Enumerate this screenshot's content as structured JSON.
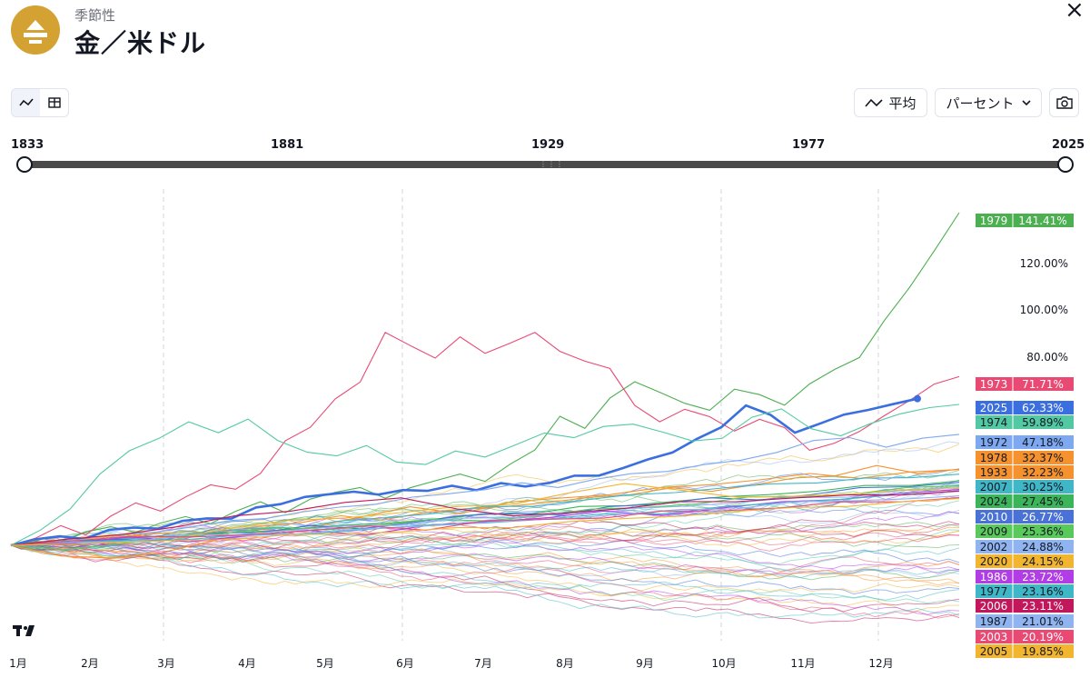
{
  "header": {
    "subtitle": "季節性",
    "title": "金／米ドル",
    "close_label": "×",
    "logo_icon": "gold-bars-icon"
  },
  "toolbar": {
    "chart_view_icon": "line-chart-icon",
    "table_view_icon": "table-icon",
    "average_label": "平均",
    "mode_label": "パーセント",
    "screenshot_icon": "camera-icon",
    "dropdown_icon": "chevron-down-icon"
  },
  "range": {
    "start": "1833",
    "ticks": [
      "1881",
      "1929",
      "1977"
    ],
    "end": "2025"
  },
  "chart_data": {
    "type": "line",
    "x_labels": [
      "1月",
      "2月",
      "3月",
      "4月",
      "5月",
      "6月",
      "7月",
      "8月",
      "9月",
      "10月",
      "11月",
      "12月"
    ],
    "y_ticks": [
      "80.00%",
      "100.00%",
      "120.00%"
    ],
    "ylim": [
      -40,
      150
    ],
    "grid": "vertical dashed",
    "legend": "right",
    "series": [
      {
        "name": "1979",
        "value": "141.41%",
        "color": "#4caf50",
        "values": [
          0,
          2,
          1,
          6,
          8,
          5,
          10,
          12,
          9,
          15,
          18,
          14,
          20,
          22,
          25,
          20,
          24,
          28,
          30,
          27,
          35,
          40,
          55,
          50,
          62,
          70,
          65,
          60,
          58,
          66,
          64,
          60,
          68,
          75,
          80,
          95,
          110,
          125,
          141.41
        ]
      },
      {
        "name": "1973",
        "value": "71.71%",
        "color": "#e84a74",
        "values": [
          0,
          3,
          8,
          5,
          12,
          18,
          15,
          20,
          26,
          24,
          30,
          45,
          50,
          62,
          70,
          90,
          85,
          80,
          88,
          82,
          86,
          90,
          83,
          78,
          75,
          60,
          52,
          58,
          55,
          48,
          54,
          50,
          40,
          44,
          48,
          55,
          62,
          68,
          71.71
        ]
      },
      {
        "name": "2025",
        "value": "62.33%",
        "color": "#3b6fe0",
        "values": [
          0,
          2,
          4,
          3,
          6,
          8,
          7,
          10,
          12,
          11,
          16,
          18,
          20,
          22,
          23,
          21,
          24,
          23,
          25,
          24,
          26,
          25,
          27,
          29,
          30,
          33,
          36,
          40,
          45,
          50,
          60,
          55,
          48,
          52,
          55,
          58,
          60,
          62.33
        ]
      },
      {
        "name": "1974",
        "value": "59.89%",
        "color": "#52c9a3",
        "values": [
          0,
          6,
          16,
          30,
          40,
          46,
          52,
          48,
          54,
          44,
          40,
          38,
          42,
          36,
          34,
          40,
          38,
          42,
          48,
          46,
          50,
          52,
          48,
          44,
          46,
          54,
          58,
          50,
          46,
          52,
          56,
          58,
          59.89
        ]
      },
      {
        "name": "1972",
        "value": "47.18%",
        "color": "#7ea8f0",
        "values": [
          0,
          1,
          3,
          4,
          6,
          8,
          10,
          12,
          14,
          16,
          18,
          20,
          22,
          24,
          26,
          25,
          28,
          30,
          32,
          34,
          36,
          40,
          44,
          46,
          42,
          45,
          47.18
        ]
      },
      {
        "name": "1978",
        "value": "32.37%",
        "color": "#f5922e",
        "values": [
          0,
          2,
          1,
          4,
          6,
          5,
          8,
          10,
          12,
          11,
          14,
          15,
          17,
          18,
          20,
          22,
          24,
          23,
          26,
          28,
          30,
          34,
          30,
          32.37
        ]
      },
      {
        "name": "1933",
        "value": "32.23%",
        "color": "#f5922e",
        "values": [
          0,
          -4,
          -6,
          -3,
          2,
          5,
          8,
          12,
          16,
          14,
          18,
          20,
          22,
          24,
          26,
          28,
          30,
          29,
          31,
          32.23
        ]
      },
      {
        "name": "2007",
        "value": "30.25%",
        "color": "#3fb7c6",
        "values": [
          0,
          1,
          2,
          4,
          5,
          7,
          8,
          10,
          12,
          14,
          16,
          17,
          19,
          21,
          23,
          24,
          26,
          27,
          28,
          29,
          30.25
        ]
      },
      {
        "name": "2024",
        "value": "27.45%",
        "color": "#3cb55a",
        "values": [
          0,
          1,
          2,
          3,
          4,
          6,
          7,
          8,
          10,
          11,
          13,
          14,
          16,
          17,
          19,
          20,
          22,
          23,
          25,
          26,
          27.45
        ]
      },
      {
        "name": "2010",
        "value": "26.77%",
        "color": "#4a72d6",
        "values": [
          0,
          1,
          3,
          2,
          5,
          6,
          8,
          7,
          10,
          12,
          14,
          13,
          16,
          18,
          20,
          19,
          22,
          24,
          25,
          26.77
        ]
      },
      {
        "name": "2009",
        "value": "25.36%",
        "color": "#5ac95c",
        "values": [
          0,
          -2,
          1,
          3,
          5,
          8,
          6,
          9,
          11,
          10,
          13,
          15,
          16,
          18,
          20,
          21,
          22,
          24,
          25.36
        ]
      },
      {
        "name": "2002",
        "value": "24.88%",
        "color": "#8fb4f0",
        "values": [
          0,
          1,
          2,
          4,
          5,
          6,
          8,
          9,
          11,
          12,
          14,
          15,
          17,
          18,
          20,
          21,
          23,
          24.88
        ]
      },
      {
        "name": "2020",
        "value": "24.15%",
        "color": "#f2b530",
        "values": [
          0,
          2,
          4,
          3,
          8,
          10,
          12,
          14,
          16,
          18,
          22,
          26,
          24,
          20,
          21,
          22,
          23,
          24.15
        ]
      },
      {
        "name": "1986",
        "value": "23.72%",
        "color": "#b23ce6",
        "values": [
          0,
          1,
          3,
          2,
          4,
          6,
          5,
          8,
          10,
          12,
          14,
          13,
          16,
          18,
          20,
          22,
          23.72
        ]
      },
      {
        "name": "1977",
        "value": "23.16%",
        "color": "#3fb7c6",
        "values": [
          0,
          1,
          2,
          3,
          4,
          5,
          7,
          8,
          10,
          11,
          13,
          14,
          16,
          18,
          20,
          21,
          23.16
        ]
      },
      {
        "name": "2006",
        "value": "23.11%",
        "color": "#c2185b",
        "values": [
          0,
          2,
          5,
          8,
          12,
          15,
          18,
          20,
          16,
          12,
          14,
          16,
          18,
          19,
          20,
          21,
          22,
          23.11
        ]
      },
      {
        "name": "1987",
        "value": "21.01%",
        "color": "#8fb4f0",
        "values": [
          0,
          1,
          2,
          3,
          4,
          5,
          6,
          8,
          9,
          10,
          12,
          13,
          15,
          16,
          18,
          19,
          20,
          21.01
        ]
      },
      {
        "name": "2003",
        "value": "20.19%",
        "color": "#e84a74",
        "values": [
          0,
          2,
          4,
          3,
          5,
          6,
          8,
          7,
          10,
          11,
          12,
          14,
          15,
          16,
          18,
          19,
          20.19
        ]
      },
      {
        "name": "2005",
        "value": "19.85%",
        "color": "#f2b530",
        "values": [
          0,
          1,
          1,
          2,
          3,
          4,
          5,
          6,
          7,
          8,
          10,
          11,
          13,
          14,
          16,
          17,
          18,
          19.85
        ]
      }
    ]
  }
}
